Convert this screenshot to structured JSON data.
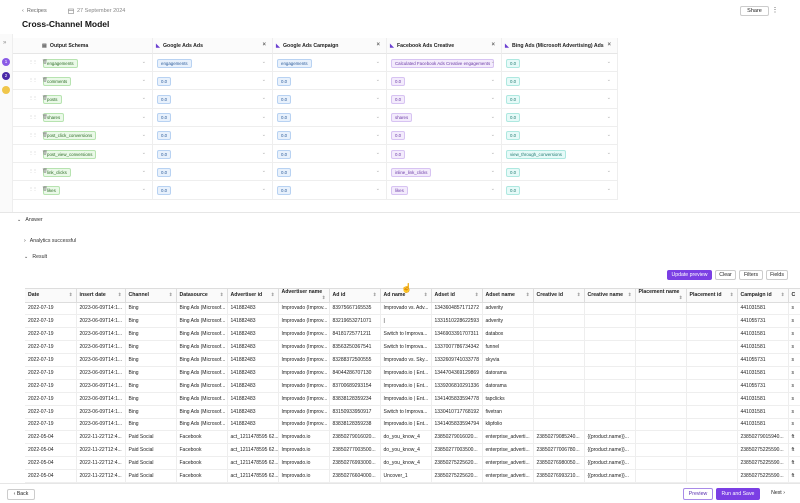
{
  "header": {
    "back_label": "Recipes",
    "date": "27 September 2024",
    "title": "Cross-Channel Model",
    "share_label": "Share",
    "more_label": "⋮"
  },
  "rail": {
    "collapse_label": "»",
    "steps": [
      "1",
      "2",
      ""
    ],
    "step_colors": [
      "#8a5be6",
      "#4b2aa8",
      "#f0c64a"
    ]
  },
  "grid": {
    "columns": [
      {
        "label": "Output Schema",
        "icon": "table-icon"
      },
      {
        "label": "Google Ads Ads",
        "icon": "google-ads-icon"
      },
      {
        "label": "Google Ads Campaign",
        "icon": "google-ads-icon"
      },
      {
        "label": "Facebook Ads Creative",
        "icon": "facebook-icon"
      },
      {
        "label": "Bing Ads (Microsoft Advertising) Ads",
        "icon": "bing-icon"
      }
    ],
    "rows": [
      [
        "engagements",
        "engagements",
        "engagements",
        "Calculated Facebook Ads Creative engagements",
        "0.0"
      ],
      [
        "comments",
        "0.0",
        "0.0",
        "0.0",
        "0.0"
      ],
      [
        "posts",
        "0.0",
        "0.0",
        "0.0",
        "0.0"
      ],
      [
        "shares",
        "0.0",
        "0.0",
        "shares",
        "0.0"
      ],
      [
        "post_click_conversions",
        "0.0",
        "0.0",
        "0.0",
        "0.0"
      ],
      [
        "post_view_conversions",
        "0.0",
        "0.0",
        "0.0",
        "view_through_conversions"
      ],
      [
        "link_clicks",
        "0.0",
        "0.0",
        "inline_link_clicks",
        "0.0"
      ],
      [
        "likes",
        "0.0",
        "0.0",
        "likes",
        "0.0"
      ]
    ]
  },
  "answer": {
    "label": "Answer",
    "analytics_label": "Analytics successful",
    "result_label": "Result",
    "update_preview_label": "Update preview",
    "clear_label": "Clear",
    "filters_label": "Filters",
    "fields_label": "Fields"
  },
  "table": {
    "headers": [
      "Date",
      "insert date",
      "Channel",
      "Datasource",
      "Advertiser id",
      "Advertiser name",
      "Ad id",
      "Ad name",
      "Adset id",
      "Adset name",
      "Creative id",
      "Creative name",
      "Placement name",
      "Placement id",
      "Campaign id",
      "C"
    ],
    "rows": [
      [
        "2022-07-19",
        "2023-06-09T14:1...",
        "Bing",
        "Bing Ads (Microsof...",
        "141882483",
        "Improvado (Improv...",
        "83975667165535",
        "Improvado vs. Adv...",
        "1343604857171272",
        "adverity",
        "",
        "",
        "",
        "",
        "441031581",
        "s"
      ],
      [
        "2022-07-19",
        "2023-06-09T14:1...",
        "Bing",
        "Bing Ads (Microsof...",
        "141882483",
        "Improvado (Improv...",
        "83219653271071",
        "|",
        "1331510228622593",
        "adverity",
        "",
        "",
        "",
        "",
        "441055731",
        "s"
      ],
      [
        "2022-07-19",
        "2023-06-09T14:1...",
        "Bing",
        "Bing Ads (Microsof...",
        "141882483",
        "Improvado (Improv...",
        "84181725771211",
        "Switch to Improva...",
        "1346903391707311",
        "databox",
        "",
        "",
        "",
        "",
        "441031581",
        "s"
      ],
      [
        "2022-07-19",
        "2023-06-09T14:1...",
        "Bing",
        "Bing Ads (Microsof...",
        "141882483",
        "Improvado (Improv...",
        "83563250367541",
        "Switch to Improva...",
        "1337007786734342",
        "funnel",
        "",
        "",
        "",
        "",
        "441031581",
        "s"
      ],
      [
        "2022-07-19",
        "2023-06-09T14:1...",
        "Bing",
        "Bing Ads (Microsof...",
        "141882483",
        "Improvado (Improv...",
        "83288372500555",
        "Improvado vs. Sky...",
        "1332609741033778",
        "skyvia",
        "",
        "",
        "",
        "",
        "441055731",
        "s"
      ],
      [
        "2022-07-19",
        "2023-06-09T14:1...",
        "Bing",
        "Bing Ads (Microsof...",
        "141882483",
        "Improvado (Improv...",
        "84044286707130",
        "Improvado.io | Ent...",
        "1344704369129869",
        "datorama",
        "",
        "",
        "",
        "",
        "441031581",
        "s"
      ],
      [
        "2022-07-19",
        "2023-06-09T14:1...",
        "Bing",
        "Bing Ads (Microsof...",
        "141882483",
        "Improvado (Improv...",
        "83700689293154",
        "Improvado.io | Ent...",
        "1339206810291336",
        "datorama",
        "",
        "",
        "",
        "",
        "441055731",
        "s"
      ],
      [
        "2022-07-19",
        "2023-06-09T14:1...",
        "Bing",
        "Bing Ads (Microsof...",
        "141882483",
        "Improvado (Improv...",
        "83838128359234",
        "Improvado.io | Ent...",
        "1341405833594778",
        "tapclicks",
        "",
        "",
        "",
        "",
        "441031581",
        "s"
      ],
      [
        "2022-07-19",
        "2023-06-09T14:1...",
        "Bing",
        "Bing Ads (Microsof...",
        "141882483",
        "Improvado (Improv...",
        "83150933950917",
        "Switch to Improva...",
        "1330410717768192",
        "fivetran",
        "",
        "",
        "",
        "",
        "441031581",
        "s"
      ],
      [
        "2022-07-19",
        "2023-06-09T14:1...",
        "Bing",
        "Bing Ads (Microsof...",
        "141882483",
        "Improvado (Improv...",
        "83838128359238",
        "Improvado.io | Ent...",
        "1341405833594794",
        "klipfolio",
        "",
        "",
        "",
        "",
        "441031581",
        "s"
      ],
      [
        "2022-05-04",
        "2022-11-22T12:4...",
        "Paid Social",
        "Facebook",
        "act_1211478595 62...",
        "Improvado.io",
        "23850279016020...",
        "do_you_know_4",
        "23850279016020...",
        "enterprise_adverti...",
        "23850279085240...",
        "{{product.name}}...",
        "",
        "",
        "23850279015940...",
        "ft"
      ],
      [
        "2022-05-04",
        "2022-11-22T12:4...",
        "Paid Social",
        "Facebook",
        "act_1211478595 62...",
        "Improvado.io",
        "23850277003500...",
        "do_you_know_4",
        "23850277003500...",
        "enterprise_adverti...",
        "23850277006780...",
        "{{product.name}}...",
        "",
        "",
        "23850275225590...",
        "ft"
      ],
      [
        "2022-05-04",
        "2022-11-22T12:4...",
        "Paid Social",
        "Facebook",
        "act_1211478595 62...",
        "Improvado.io",
        "23850276993000...",
        "do_you_know_4",
        "23850275225620...",
        "enterprise_adverti...",
        "23850276980050...",
        "{{product.name}}...",
        "",
        "",
        "23850275225590...",
        "ft"
      ],
      [
        "2022-05-04",
        "2022-11-22T12:4...",
        "Paid Social",
        "Facebook",
        "act_1211478595 62...",
        "Improvado.io",
        "23850276604000...",
        "Uncover_1",
        "23850275225620...",
        "enterprise_adverti...",
        "23850276993210...",
        "{{product.name}}...",
        "",
        "",
        "23850275225590...",
        "ft"
      ]
    ]
  },
  "footer": {
    "back_label": "Back",
    "preview_label": "Preview",
    "run_label": "Run and Save",
    "next_label": "Next"
  }
}
